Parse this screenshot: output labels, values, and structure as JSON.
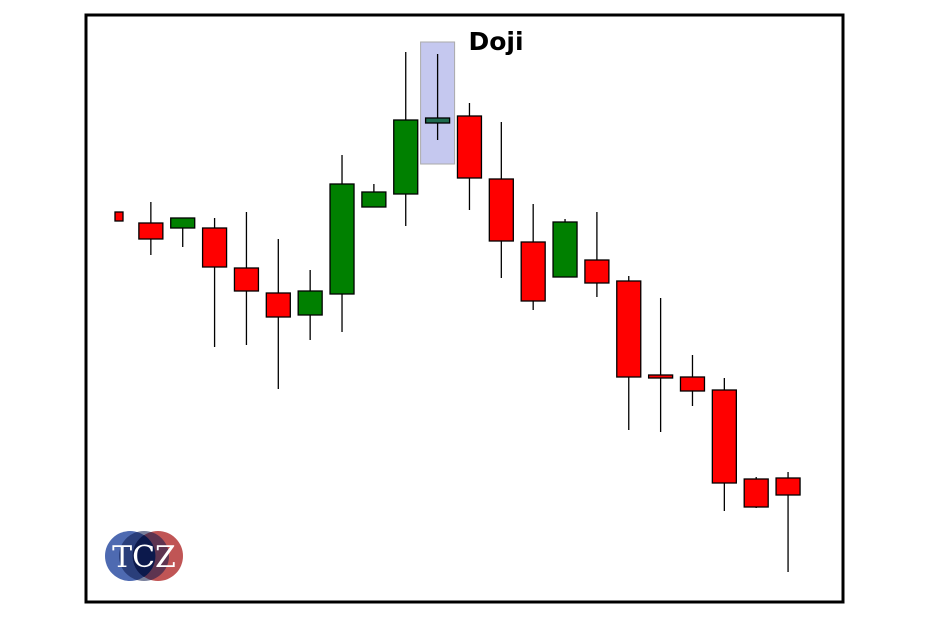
{
  "chart_data": {
    "type": "candlestick",
    "title": "Doji",
    "xlabel": "",
    "ylabel": "",
    "axes_visible": false,
    "grid": false,
    "ylim": [
      20,
      560
    ],
    "colors": {
      "bullish": "#008000",
      "bearish": "#ff0000",
      "doji": "#1e6b4e",
      "highlight": "#c5c8ef",
      "frame": "#000000"
    },
    "highlighted_index": 10,
    "candles": [
      {
        "open": 388,
        "high": 388,
        "low": 379,
        "close": 379
      },
      {
        "open": 377,
        "high": 398,
        "low": 345,
        "close": 361
      },
      {
        "open": 372,
        "high": 382,
        "low": 353,
        "close": 382
      },
      {
        "open": 372,
        "high": 382,
        "low": 253,
        "close": 333
      },
      {
        "open": 332,
        "high": 388,
        "low": 255,
        "close": 309
      },
      {
        "open": 307,
        "high": 361,
        "low": 211,
        "close": 283
      },
      {
        "open": 285,
        "high": 330,
        "low": 260,
        "close": 309
      },
      {
        "open": 306,
        "high": 445,
        "low": 268,
        "close": 416
      },
      {
        "open": 393,
        "high": 416,
        "low": 393,
        "close": 408
      },
      {
        "open": 406,
        "high": 548,
        "low": 374,
        "close": 480
      },
      {
        "open": 477,
        "high": 546,
        "low": 460,
        "close": 482
      },
      {
        "open": 484,
        "high": 497,
        "low": 390,
        "close": 422
      },
      {
        "open": 421,
        "high": 478,
        "low": 322,
        "close": 359
      },
      {
        "open": 358,
        "high": 396,
        "low": 290,
        "close": 299
      },
      {
        "open": 323,
        "high": 381,
        "low": 323,
        "close": 378
      },
      {
        "open": 340,
        "high": 388,
        "low": 303,
        "close": 317
      },
      {
        "open": 319,
        "high": 324,
        "low": 170,
        "close": 223
      },
      {
        "open": 225,
        "high": 302,
        "low": 168,
        "close": 222
      },
      {
        "open": 223,
        "high": 245,
        "low": 194,
        "close": 209
      },
      {
        "open": 210,
        "high": 222,
        "low": 89,
        "close": 117
      },
      {
        "open": 121,
        "high": 123,
        "low": 92,
        "close": 93
      },
      {
        "open": 122,
        "high": 128,
        "low": 28,
        "close": 105
      }
    ]
  },
  "logo": {
    "text": "TCZ",
    "colors": [
      "#3b5aa8",
      "#0d1a4d",
      "#b02a2a"
    ]
  }
}
